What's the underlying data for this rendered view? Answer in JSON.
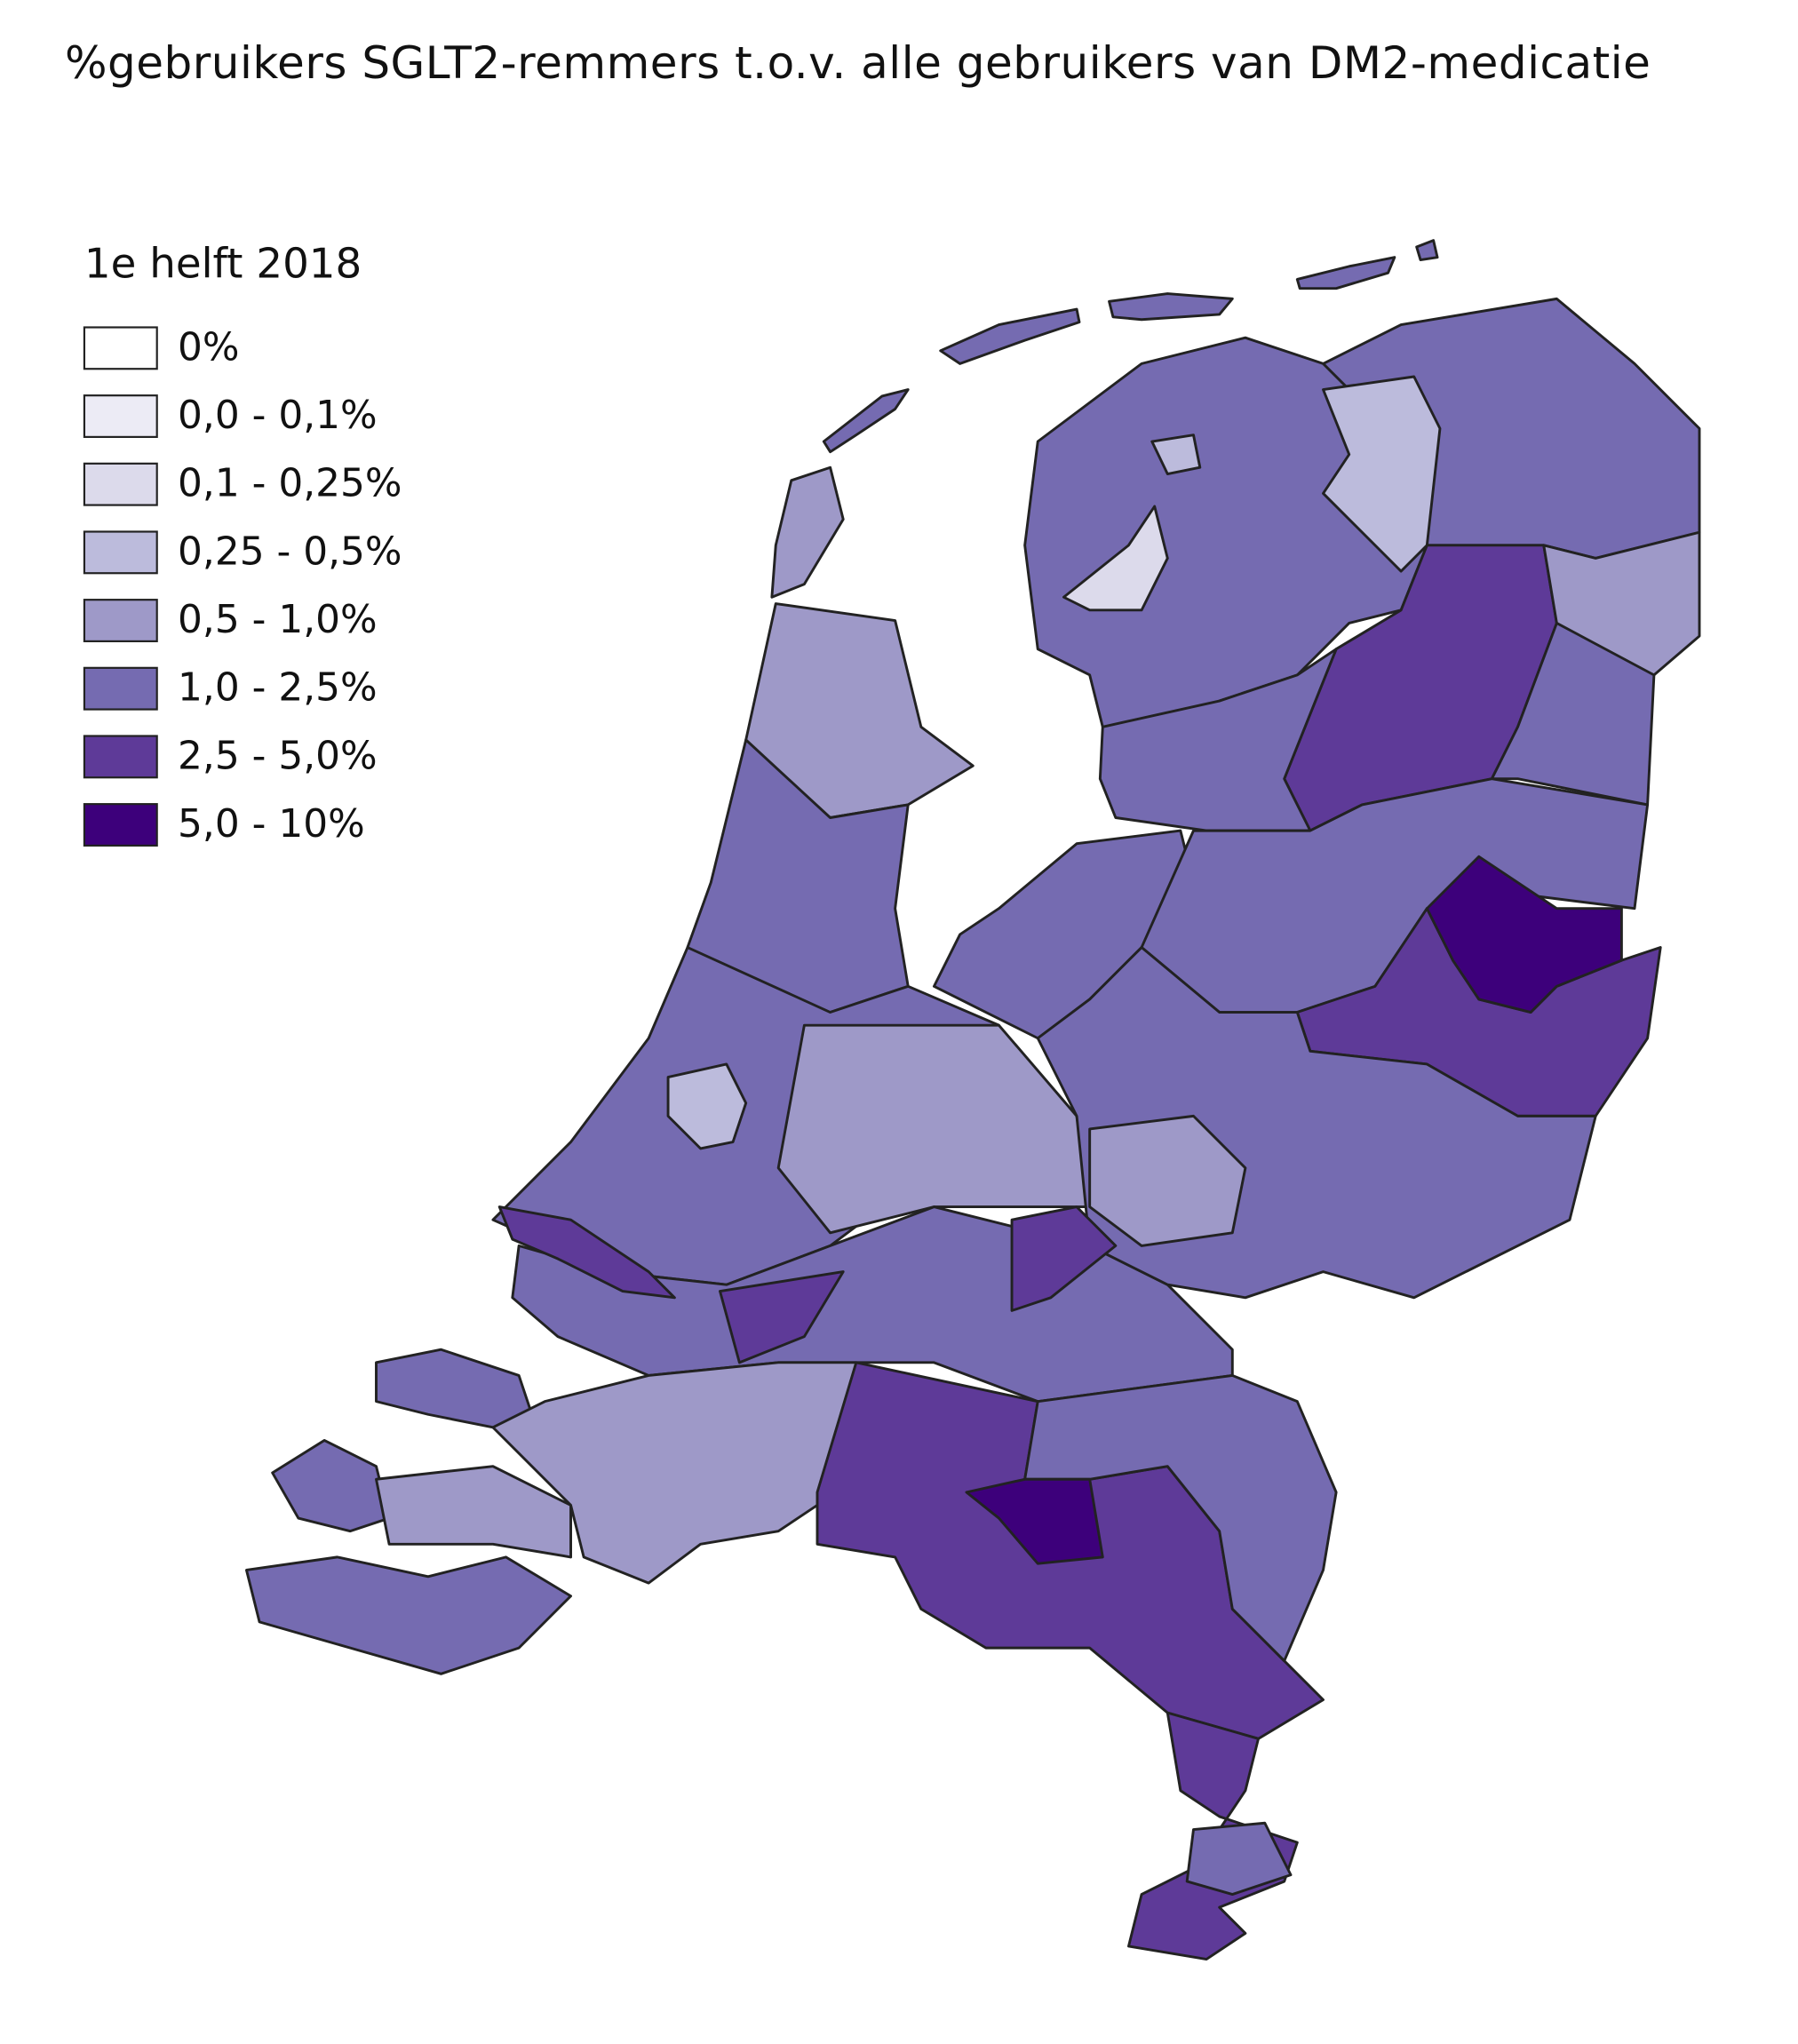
{
  "title": "%gebruikers SGLT2-remmers t.o.v. alle gebruikers van DM2-medicatie",
  "legend": {
    "title": "1e helft 2018",
    "items": [
      {
        "label": "0%",
        "color": "#ffffff"
      },
      {
        "label": "0,0 - 0,1%",
        "color": "#ecebf5"
      },
      {
        "label": "0,1 - 0,25%",
        "color": "#dcdaeb"
      },
      {
        "label": "0,25 - 0,5%",
        "color": "#bcbbdc"
      },
      {
        "label": "0,5 - 1,0%",
        "color": "#9e99c8"
      },
      {
        "label": "1,0 - 2,5%",
        "color": "#756bb1"
      },
      {
        "label": "2,5 - 5,0%",
        "color": "#5e3a98"
      },
      {
        "label": "5,0 - 10%",
        "color": "#3d007b"
      }
    ]
  }
}
